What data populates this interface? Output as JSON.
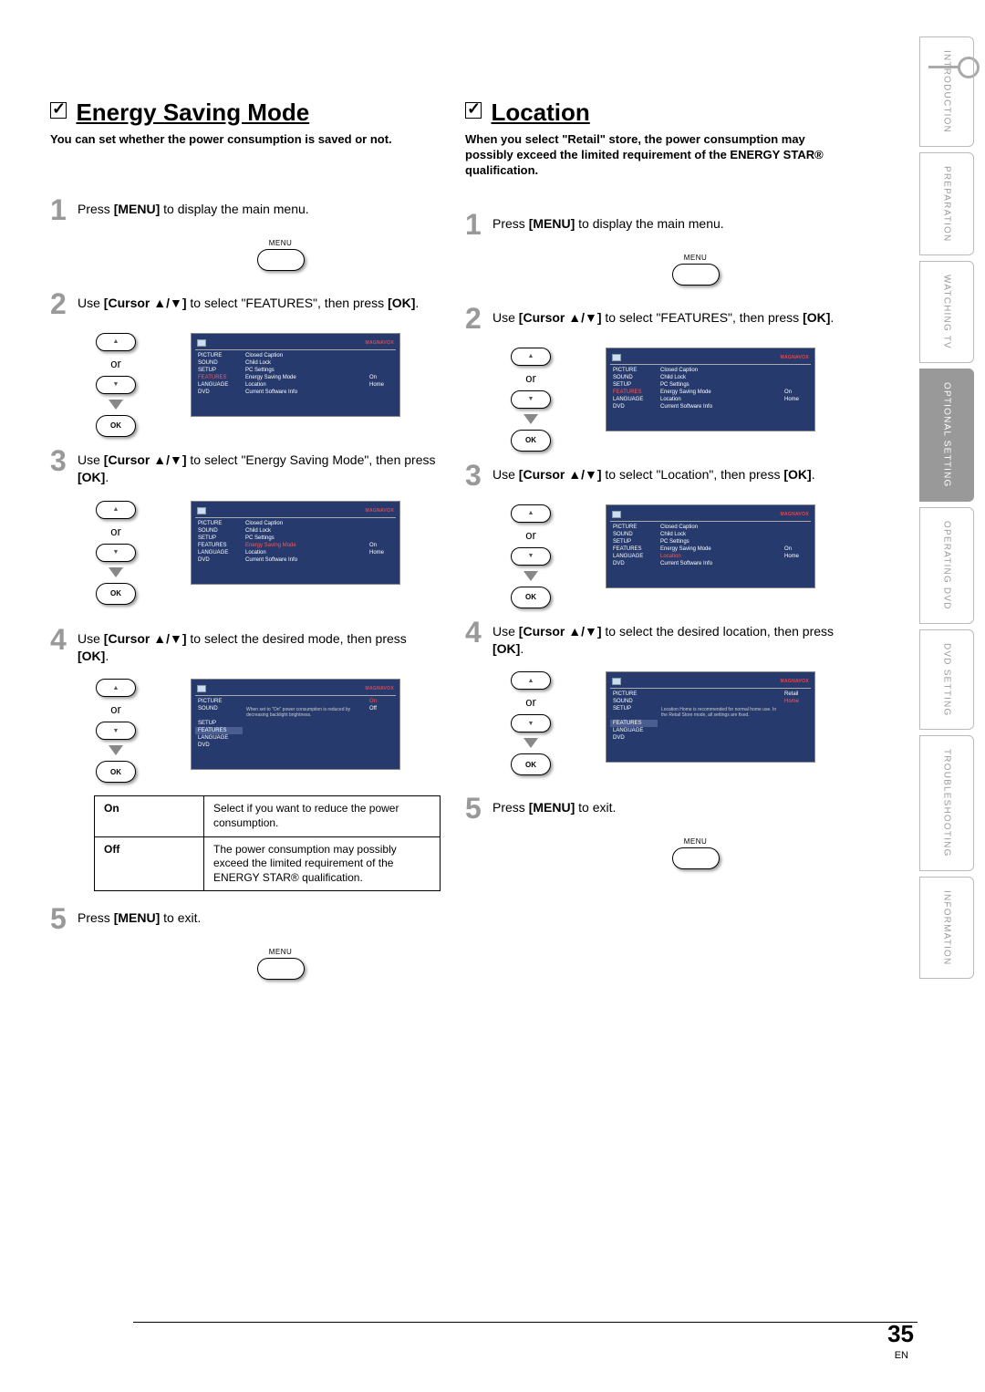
{
  "page": {
    "number": "35",
    "lang": "EN"
  },
  "sidebar": {
    "tabs": [
      "INTRODUCTION",
      "PREPARATION",
      "WATCHING TV",
      "OPTIONAL SETTING",
      "OPERATING DVD",
      "DVD SETTING",
      "TROUBLESHOOTING",
      "INFORMATION"
    ],
    "active_index": 3
  },
  "common": {
    "or": "or",
    "ok": "OK",
    "menu_label": "MENU",
    "brand": "MAGNAVOX",
    "cursor_up": "▲",
    "cursor_down": "▼"
  },
  "osd_menu": {
    "left_items": [
      "PICTURE",
      "SOUND",
      "SETUP",
      "FEATURES",
      "LANGUAGE",
      "DVD"
    ],
    "features_items": [
      "Closed Caption",
      "Child Lock",
      "PC Settings",
      "Energy Saving Mode",
      "Location",
      "Current Software Info"
    ],
    "features_values": {
      "Energy Saving Mode": "On",
      "Location": "Home"
    },
    "location_items": [
      "Retail",
      "Home"
    ],
    "location_desc": "Location Home is recommended for normal home use. In the Retail Store mode, all settings are fixed.",
    "esm_items": [
      "On",
      "Off"
    ],
    "esm_desc": "When set to \"On\" power consumption is reduced by decreasing backlight brightness."
  },
  "left": {
    "title": "Energy Saving Mode",
    "subtitle": "You can set whether the power consumption is saved or not.",
    "steps": {
      "1": {
        "pre": "Press ",
        "b": "[MENU]",
        "post": " to display the main menu."
      },
      "2": {
        "pre": "Use ",
        "b1": "[Cursor ",
        "b2": "]",
        "post1": " to select \"FEATURES\", then press ",
        "b3": "[OK]",
        "post2": "."
      },
      "3": {
        "pre": "Use ",
        "b1": "[Cursor ",
        "b2": "]",
        "post1": " to select \"Energy Saving Mode\", then press ",
        "b3": "[OK]",
        "post2": "."
      },
      "4": {
        "pre": "Use ",
        "b1": "[Cursor ",
        "b2": "]",
        "post1": " to select the desired mode, then press ",
        "b3": "[OK]",
        "post2": "."
      },
      "5": {
        "pre": "Press ",
        "b": "[MENU]",
        "post": " to exit."
      }
    },
    "table": {
      "rows": [
        {
          "k": "On",
          "v": "Select if you want to reduce the power consumption."
        },
        {
          "k": "Off",
          "v": "The power consumption may possibly exceed the limited requirement of the ENERGY STAR® qualification."
        }
      ]
    }
  },
  "right": {
    "title": "Location",
    "subtitle": "When you select \"Retail\" store, the power consumption may possibly exceed the limited requirement of the ENERGY STAR® qualification.",
    "steps": {
      "1": {
        "pre": "Press ",
        "b": "[MENU]",
        "post": " to display the main menu."
      },
      "2": {
        "pre": "Use ",
        "b1": "[Cursor ",
        "b2": "]",
        "post1": " to select \"FEATURES\", then press ",
        "b3": "[OK]",
        "post2": "."
      },
      "3": {
        "pre": "Use ",
        "b1": "[Cursor ",
        "b2": "]",
        "post1": " to select \"Location\", then press ",
        "b3": "[OK]",
        "post2": "."
      },
      "4": {
        "pre": "Use ",
        "b1": "[Cursor ",
        "b2": "]",
        "post1": " to select the desired location, then press ",
        "b3": "[OK]",
        "post2": "."
      },
      "5": {
        "pre": "Press ",
        "b": "[MENU]",
        "post": " to exit."
      }
    }
  }
}
